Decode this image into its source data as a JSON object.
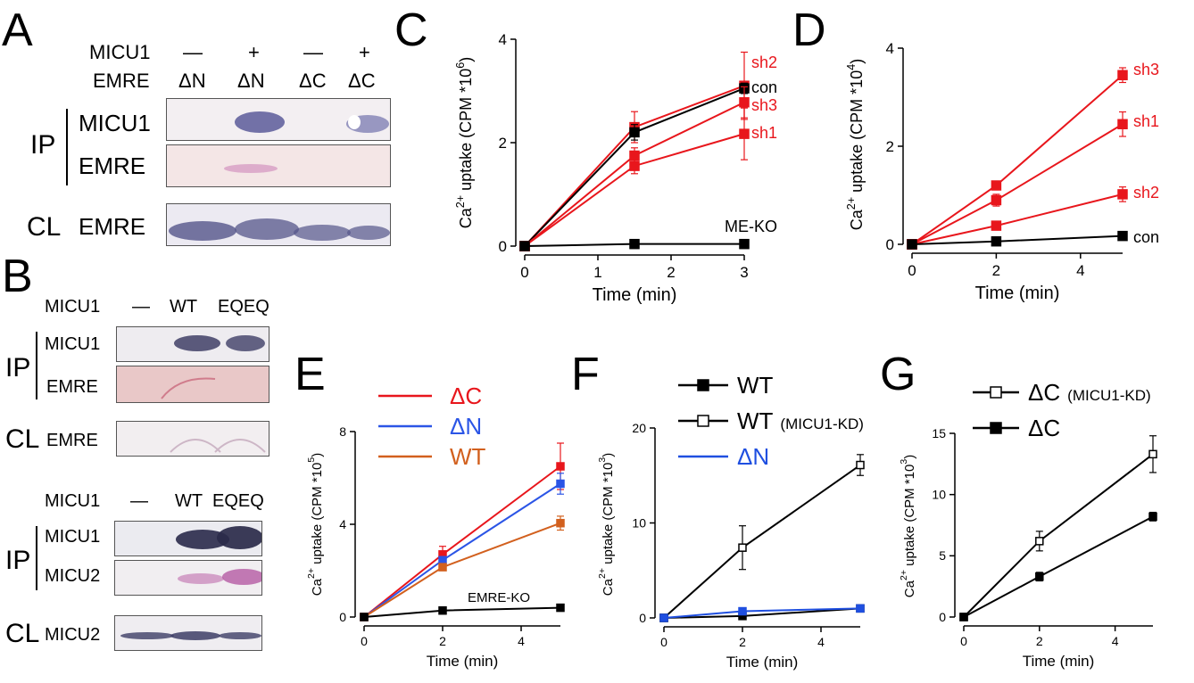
{
  "panelA": {
    "letter": "A",
    "row1_label": "MICU1",
    "row2_label": "EMRE",
    "micu1_cols": [
      "—",
      "+",
      "—",
      "+"
    ],
    "emre_cols": [
      "ΔN",
      "ΔN",
      "ΔC",
      "ΔC"
    ],
    "ip_label": "IP",
    "blot1": "MICU1",
    "blot2": "EMRE",
    "cl_label": "CL",
    "blot3": "EMRE"
  },
  "panelB": {
    "letter": "B",
    "top": {
      "header_label": "MICU1",
      "cols": [
        "—",
        "WT",
        "EQEQ"
      ],
      "ip_label": "IP",
      "blot1": "MICU1",
      "blot2": "EMRE",
      "cl_label": "CL",
      "blot3": "EMRE"
    },
    "bottom": {
      "header_label": "MICU1",
      "cols": [
        "—",
        "WT",
        "EQEQ"
      ],
      "ip_label": "IP",
      "blot1": "MICU1",
      "blot2": "MICU2",
      "cl_label": "CL",
      "blot3": "MICU2"
    }
  },
  "colors": {
    "red": "#e8161c",
    "blue": "#2b55e6",
    "orange": "#d2601e",
    "black": "#000000",
    "blue2": "#1f4fe0"
  },
  "chart_data": [
    {
      "panel": "C",
      "type": "line",
      "xlabel": "Time (min)",
      "ylabel": "Ca2+ uptake (CPM *10^6)",
      "ylabel_base": "Ca",
      "ylabel_sup": "2+",
      "ylabel_rest": " uptake (CPM *10",
      "ylabel_exp": "6",
      "ylabel_close": ")",
      "xlim": [
        0,
        3
      ],
      "ylim": [
        0,
        4
      ],
      "xticks": [
        0,
        1,
        2,
        3
      ],
      "yticks": [
        0,
        2,
        4
      ],
      "marker": "filled",
      "series": [
        {
          "name": "sh2",
          "color": "red",
          "x": [
            0,
            1.5,
            3
          ],
          "y": [
            0,
            2.3,
            3.1
          ],
          "err": [
            0,
            0.3,
            0.65
          ]
        },
        {
          "name": "con",
          "color": "black",
          "x": [
            0,
            1.5,
            3
          ],
          "y": [
            0,
            2.2,
            3.05
          ],
          "err": [
            0,
            0.15,
            0.1
          ]
        },
        {
          "name": "sh3",
          "color": "red",
          "x": [
            0,
            1.5,
            3
          ],
          "y": [
            0,
            1.75,
            2.78
          ],
          "err": [
            0,
            0.15,
            0.3
          ]
        },
        {
          "name": "sh1",
          "color": "red",
          "x": [
            0,
            1.5,
            3
          ],
          "y": [
            0,
            1.55,
            2.17
          ],
          "err": [
            0,
            0.15,
            0.5
          ]
        },
        {
          "name": "ME-KO",
          "color": "black",
          "x": [
            0,
            1.5,
            3
          ],
          "y": [
            0,
            0.04,
            0.04
          ],
          "err": [
            0,
            0,
            0
          ]
        }
      ]
    },
    {
      "panel": "D",
      "type": "line",
      "xlabel": "Time (min)",
      "ylabel": "Ca2+ uptake (CPM *10^4)",
      "ylabel_base": "Ca",
      "ylabel_sup": "2+",
      "ylabel_rest": " uptake (CPM *10",
      "ylabel_exp": "4",
      "ylabel_close": ")",
      "xlim": [
        0,
        5
      ],
      "ylim": [
        0,
        4
      ],
      "xticks": [
        0,
        2,
        4
      ],
      "yticks": [
        0,
        2,
        4
      ],
      "marker": "filled",
      "series": [
        {
          "name": "sh3",
          "color": "red",
          "x": [
            0,
            2,
            5
          ],
          "y": [
            0,
            1.2,
            3.45
          ],
          "err": [
            0,
            0.05,
            0.15
          ]
        },
        {
          "name": "sh1",
          "color": "red",
          "x": [
            0,
            2,
            5
          ],
          "y": [
            0,
            0.9,
            2.45
          ],
          "err": [
            0,
            0.12,
            0.25
          ]
        },
        {
          "name": "sh2",
          "color": "red",
          "x": [
            0,
            2,
            5
          ],
          "y": [
            0,
            0.38,
            1.02
          ],
          "err": [
            0,
            0.03,
            0.15
          ]
        },
        {
          "name": "con",
          "color": "black",
          "x": [
            0,
            2,
            5
          ],
          "y": [
            0,
            0.06,
            0.17
          ],
          "err": [
            0,
            0,
            0
          ]
        }
      ]
    },
    {
      "panel": "E",
      "type": "line",
      "xlabel": "Time (min)",
      "ylabel": "Ca2+ uptake (CPM *10^5)",
      "ylabel_base": "Ca",
      "ylabel_sup": "2+",
      "ylabel_rest": " uptake (CPM *10",
      "ylabel_exp": "5",
      "ylabel_close": ")",
      "xlim": [
        0,
        5
      ],
      "ylim": [
        0,
        8
      ],
      "xticks": [
        0,
        2,
        4
      ],
      "yticks": [
        0,
        4,
        8
      ],
      "marker": "filled",
      "legend": [
        "ΔC",
        "ΔN",
        "WT"
      ],
      "series": [
        {
          "name": "ΔC",
          "color": "red",
          "x": [
            0,
            2,
            5
          ],
          "y": [
            0,
            2.7,
            6.5
          ],
          "err": [
            0,
            0.35,
            1.0
          ]
        },
        {
          "name": "ΔN",
          "color": "blue",
          "x": [
            0,
            2,
            5
          ],
          "y": [
            0,
            2.45,
            5.75
          ],
          "err": [
            0,
            0.1,
            0.45
          ]
        },
        {
          "name": "WT",
          "color": "orange",
          "x": [
            0,
            2,
            5
          ],
          "y": [
            0,
            2.15,
            4.05
          ],
          "err": [
            0,
            0.1,
            0.3
          ]
        },
        {
          "name": "EMRE-KO",
          "color": "black",
          "x": [
            0,
            2,
            5
          ],
          "y": [
            0,
            0.28,
            0.4
          ],
          "err": [
            0,
            0,
            0
          ]
        }
      ]
    },
    {
      "panel": "F",
      "type": "line",
      "xlabel": "Time (min)",
      "ylabel": "Ca2+ uptake (CPM *10^3)",
      "ylabel_base": "Ca",
      "ylabel_sup": "2+",
      "ylabel_rest": " uptake (CPM *10",
      "ylabel_exp": "3",
      "ylabel_close": ")",
      "xlim": [
        0,
        5
      ],
      "ylim": [
        0,
        20
      ],
      "xticks": [
        0,
        2,
        4
      ],
      "yticks": [
        0,
        10,
        20
      ],
      "legend": [
        "WT",
        "WT (MICU1-KD)",
        "ΔN"
      ],
      "legend_main": [
        "WT",
        "WT",
        "ΔN"
      ],
      "legend_sub": [
        "",
        "(MICU1-KD)",
        ""
      ],
      "series": [
        {
          "name": "WT (MICU1-KD)",
          "color": "black",
          "marker": "open",
          "x": [
            0,
            2,
            5
          ],
          "y": [
            0,
            7.4,
            16.1
          ],
          "err": [
            0,
            2.3,
            1.1
          ]
        },
        {
          "name": "WT",
          "color": "black",
          "marker": "filled",
          "x": [
            0,
            2,
            5
          ],
          "y": [
            0,
            0.2,
            1.0
          ],
          "err": [
            0,
            0,
            0
          ]
        },
        {
          "name": "ΔN",
          "color": "blue2",
          "marker": "filled",
          "x": [
            0,
            2,
            5
          ],
          "y": [
            0,
            0.7,
            1.0
          ],
          "err": [
            0,
            0,
            0
          ]
        }
      ]
    },
    {
      "panel": "G",
      "type": "line",
      "xlabel": "Time (min)",
      "ylabel": "Ca2+ uptake (CPM *10^3)",
      "ylabel_base": "Ca",
      "ylabel_sup": "2+",
      "ylabel_rest": " uptake (CPM *10",
      "ylabel_exp": "3",
      "ylabel_close": ")",
      "xlim": [
        0,
        5
      ],
      "ylim": [
        0,
        15
      ],
      "xticks": [
        0,
        2,
        4
      ],
      "yticks": [
        0,
        5,
        10,
        15
      ],
      "legend": [
        "ΔC (MICU1-KD)",
        "ΔC"
      ],
      "legend_main": [
        "ΔC",
        "ΔC"
      ],
      "legend_sub": [
        "(MICU1-KD)",
        ""
      ],
      "series": [
        {
          "name": "ΔC (MICU1-KD)",
          "color": "black",
          "marker": "open",
          "x": [
            0,
            2,
            5
          ],
          "y": [
            0,
            6.2,
            13.3
          ],
          "err": [
            0,
            0.8,
            1.5
          ]
        },
        {
          "name": "ΔC",
          "color": "black",
          "marker": "filled",
          "x": [
            0,
            2,
            5
          ],
          "y": [
            0,
            3.3,
            8.2
          ],
          "err": [
            0,
            0.35,
            0.35
          ]
        }
      ]
    }
  ]
}
